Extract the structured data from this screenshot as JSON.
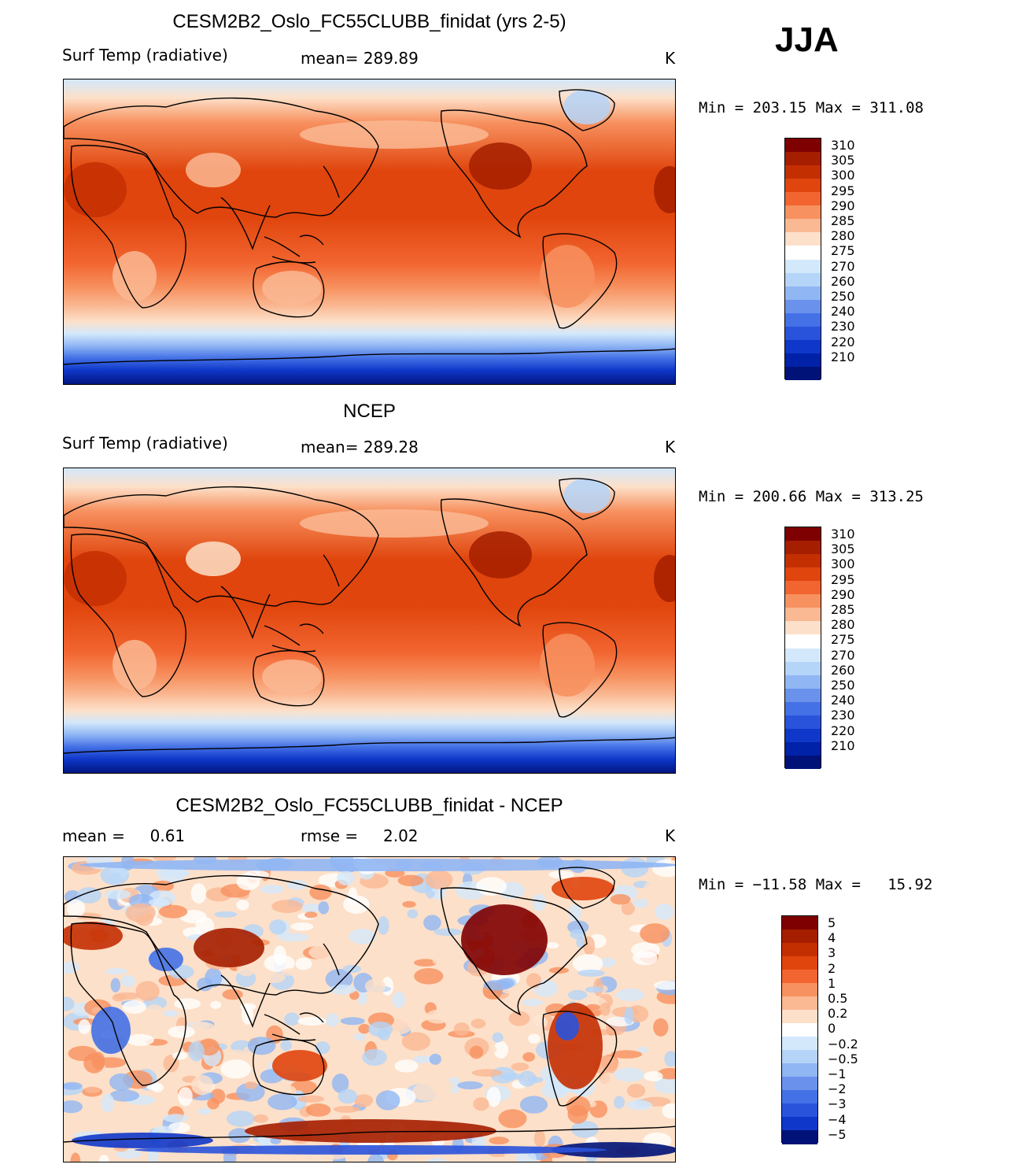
{
  "season": "JJA",
  "panels": [
    {
      "title": "CESM2B2_Oslo_FC55CLUBB_finidat (yrs 2-5)",
      "left_label": "Surf Temp (radiative)",
      "mid_label": "mean= 289.89",
      "unit": "K",
      "minmax": "Min = 203.15 Max = 311.08"
    },
    {
      "title": "NCEP",
      "left_label": "Surf Temp (radiative)",
      "mid_label": "mean= 289.28",
      "unit": "K",
      "minmax": "Min = 200.66 Max = 313.25"
    },
    {
      "title": "CESM2B2_Oslo_FC55CLUBB_finidat - NCEP",
      "left_label": "mean =     0.61",
      "mid_label": "rmse =     2.02",
      "unit": "K",
      "minmax": "Min = −11.58 Max =   15.92"
    }
  ],
  "colorbars": {
    "temperature": {
      "labels": [
        "310",
        "305",
        "300",
        "295",
        "290",
        "285",
        "280",
        "275",
        "270",
        "260",
        "250",
        "240",
        "230",
        "220",
        "210"
      ],
      "colors": [
        "#7f0000",
        "#a51e00",
        "#c42f02",
        "#e0450d",
        "#f26530",
        "#f7915f",
        "#fab893",
        "#fde0c9",
        "#ffffff",
        "#d3e8fb",
        "#b4d4f8",
        "#90b6f4",
        "#6a92ed",
        "#4471e6",
        "#2a53dc",
        "#0f37c9",
        "#0022a8",
        "#001278"
      ]
    },
    "difference": {
      "labels": [
        "5",
        "4",
        "3",
        "2",
        "1",
        "0.5",
        "0.2",
        "0",
        "−0.2",
        "−0.5",
        "−1",
        "−2",
        "−3",
        "−4",
        "−5"
      ],
      "colors": [
        "#7f0000",
        "#a51e00",
        "#c42f02",
        "#e0450d",
        "#f26530",
        "#f7915f",
        "#fab893",
        "#fde0c9",
        "#ffffff",
        "#d3e8fb",
        "#b4d4f8",
        "#90b6f4",
        "#6a92ed",
        "#4471e6",
        "#2a53dc",
        "#0f37c9",
        "#001278"
      ]
    }
  }
}
